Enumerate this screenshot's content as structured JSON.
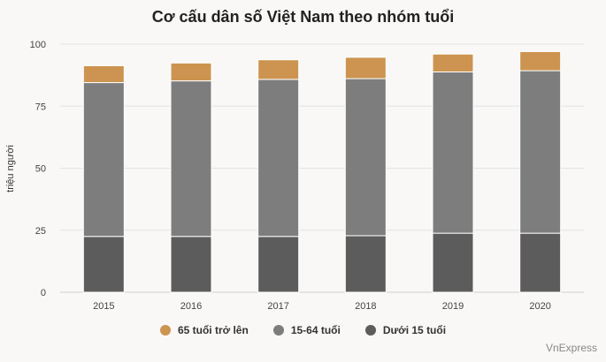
{
  "chart_data": {
    "type": "bar",
    "stacked": true,
    "title": "Cơ cấu dân số Việt Nam theo nhóm tuổi",
    "ylabel": "triệu người",
    "xlabel": "",
    "ylim": [
      0,
      100
    ],
    "yticks": [
      0,
      25,
      50,
      75,
      100
    ],
    "grid": true,
    "legend_position": "bottom",
    "categories": [
      "2015",
      "2016",
      "2017",
      "2018",
      "2019",
      "2020"
    ],
    "series": [
      {
        "name": "Dưới 15 tuổi",
        "color": "#5c5c5c",
        "values": [
          22.5,
          22.5,
          22.5,
          22.8,
          23.8,
          23.8
        ]
      },
      {
        "name": "15-64 tuổi",
        "color": "#7d7d7d",
        "values": [
          62.0,
          62.7,
          63.3,
          63.3,
          65.0,
          65.5
        ]
      },
      {
        "name": "65 tuổi trở lên",
        "color": "#cc9450",
        "values": [
          6.8,
          7.2,
          7.9,
          8.6,
          7.2,
          7.7
        ]
      }
    ]
  },
  "legend": [
    {
      "label": "65 tuổi trở lên",
      "color": "#cc9450"
    },
    {
      "label": "15-64 tuổi",
      "color": "#7d7d7d"
    },
    {
      "label": "Dưới 15 tuổi",
      "color": "#5c5c5c"
    }
  ],
  "source": "VnExpress"
}
